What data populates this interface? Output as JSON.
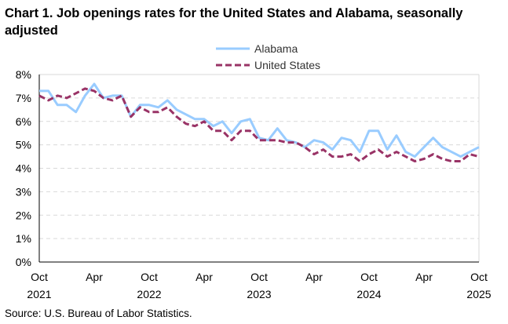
{
  "chart_data": {
    "type": "line",
    "title": "Chart 1. Job openings rates for the United States and Alabama, seasonally adjusted",
    "source": "Source: U.S. Bureau of Labor Statistics.",
    "xlabel": "",
    "ylabel": "",
    "ylim": [
      0,
      8
    ],
    "yticks": [
      "0%",
      "1%",
      "2%",
      "3%",
      "4%",
      "5%",
      "6%",
      "7%",
      "8%"
    ],
    "xticks": [
      {
        "month": "Oct",
        "year": "2021",
        "index": 0
      },
      {
        "month": "Apr",
        "year": "",
        "index": 6
      },
      {
        "month": "Oct",
        "year": "2022",
        "index": 12
      },
      {
        "month": "Apr",
        "year": "",
        "index": 18
      },
      {
        "month": "Oct",
        "year": "2023",
        "index": 24
      },
      {
        "month": "Apr",
        "year": "",
        "index": 30
      },
      {
        "month": "Oct",
        "year": "2024",
        "index": 36
      },
      {
        "month": "Apr",
        "year": "",
        "index": 42
      },
      {
        "month": "Oct",
        "year": "2025",
        "index": 48
      }
    ],
    "x_range": [
      "Oct 2021",
      "Oct 2025"
    ],
    "grid": "horizontal dashed",
    "legend_placement": "top-center",
    "series": [
      {
        "name": "Alabama",
        "color": "#99ccff",
        "style": "solid",
        "values": [
          7.3,
          7.3,
          6.7,
          6.7,
          6.4,
          7.1,
          7.6,
          7.0,
          7.1,
          7.1,
          6.2,
          6.7,
          6.7,
          6.6,
          6.9,
          6.5,
          6.3,
          6.1,
          6.1,
          5.8,
          6.0,
          5.5,
          6.0,
          6.1,
          5.3,
          5.2,
          5.7,
          5.2,
          5.1,
          4.9,
          5.2,
          5.1,
          4.8,
          5.3,
          5.2,
          4.7,
          5.6,
          5.6,
          4.8,
          5.4,
          4.7,
          4.5,
          4.9,
          5.3,
          4.9,
          4.7,
          4.5,
          4.7,
          4.9
        ]
      },
      {
        "name": "United States",
        "color": "#993366",
        "style": "dashed",
        "values": [
          7.1,
          6.9,
          7.1,
          7.0,
          7.2,
          7.4,
          7.3,
          7.0,
          6.9,
          7.1,
          6.2,
          6.6,
          6.4,
          6.4,
          6.6,
          6.2,
          5.9,
          5.8,
          6.0,
          5.6,
          5.6,
          5.2,
          5.6,
          5.6,
          5.2,
          5.2,
          5.2,
          5.1,
          5.1,
          4.9,
          4.6,
          4.8,
          4.5,
          4.5,
          4.6,
          4.3,
          4.6,
          4.8,
          4.5,
          4.7,
          4.5,
          4.3,
          4.4,
          4.6,
          4.4,
          4.3,
          4.3,
          4.6,
          4.5
        ]
      }
    ]
  }
}
